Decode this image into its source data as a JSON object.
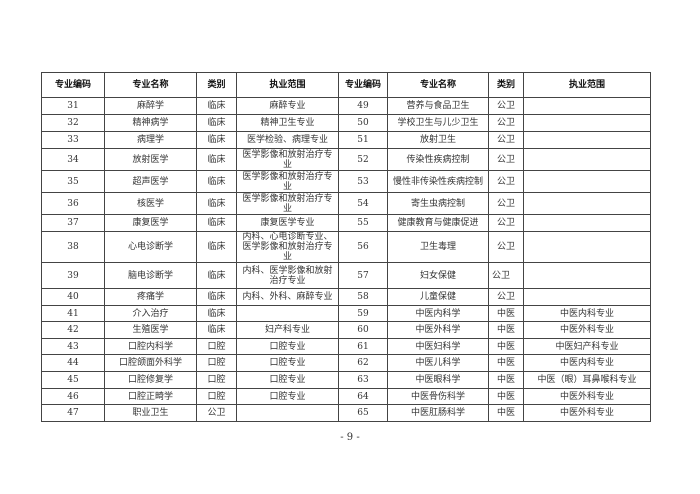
{
  "headers": [
    "专业编码",
    "专业名称",
    "类别",
    "执业范围",
    "专业编码",
    "专业名称",
    "类别",
    "执业范围"
  ],
  "rows": [
    {
      "left": [
        "31",
        "麻醉学",
        "临床",
        "麻醉专业"
      ],
      "right": [
        "49",
        "营养与食品卫生",
        "公卫",
        ""
      ]
    },
    {
      "left": [
        "32",
        "精神病学",
        "临床",
        "精神卫生专业"
      ],
      "right": [
        "50",
        "学校卫生与儿少卫生",
        "公卫",
        ""
      ]
    },
    {
      "left": [
        "33",
        "病理学",
        "临床",
        "医学检验、病理专业"
      ],
      "right": [
        "51",
        "放射卫生",
        "公卫",
        ""
      ]
    },
    {
      "left": [
        "34",
        "放射医学",
        "临床",
        "医学影像和放射治疗专业"
      ],
      "right": [
        "52",
        "传染性疾病控制",
        "公卫",
        ""
      ]
    },
    {
      "left": [
        "35",
        "超声医学",
        "临床",
        "医学影像和放射治疗专业"
      ],
      "right": [
        "53",
        "慢性非传染性疾病控制",
        "公卫",
        ""
      ]
    },
    {
      "left": [
        "36",
        "核医学",
        "临床",
        "医学影像和放射治疗专业"
      ],
      "right": [
        "54",
        "寄生虫病控制",
        "公卫",
        ""
      ]
    },
    {
      "left": [
        "37",
        "康复医学",
        "临床",
        "康复医学专业"
      ],
      "right": [
        "55",
        "健康教育与健康促进",
        "公卫",
        ""
      ]
    },
    {
      "left": [
        "38",
        "心电诊断学",
        "临床",
        "内科、心电诊断专业、医学影像和放射治疗专业"
      ],
      "right": [
        "56",
        "卫生毒理",
        "公卫",
        ""
      ]
    },
    {
      "left": [
        "39",
        "脑电诊断学",
        "临床",
        "内科、医学影像和放射治疗专业"
      ],
      "right": [
        "57",
        "妇女保健",
        "公卫",
        ""
      ]
    },
    {
      "left": [
        "40",
        "疼痛学",
        "临床",
        "内科、外科、麻醉专业"
      ],
      "right": [
        "58",
        "儿童保健",
        "公卫",
        ""
      ]
    },
    {
      "left": [
        "41",
        "介入治疗",
        "临床",
        ""
      ],
      "right": [
        "59",
        "中医内科学",
        "中医",
        "中医内科专业"
      ]
    },
    {
      "left": [
        "42",
        "生殖医学",
        "临床",
        "妇产科专业"
      ],
      "right": [
        "60",
        "中医外科学",
        "中医",
        "中医外科专业"
      ]
    },
    {
      "left": [
        "43",
        "口腔内科学",
        "口腔",
        "口腔专业"
      ],
      "right": [
        "61",
        "中医妇科学",
        "中医",
        "中医妇产科专业"
      ]
    },
    {
      "left": [
        "44",
        "口腔颌面外科学",
        "口腔",
        "口腔专业"
      ],
      "right": [
        "62",
        "中医儿科学",
        "中医",
        "中医内科专业"
      ]
    },
    {
      "left": [
        "45",
        "口腔修复学",
        "口腔",
        "口腔专业"
      ],
      "right": [
        "63",
        "中医眼科学",
        "中医",
        "中医（眼）耳鼻喉科专业"
      ]
    },
    {
      "left": [
        "46",
        "口腔正畸学",
        "口腔",
        "口腔专业"
      ],
      "right": [
        "64",
        "中医骨伤科学",
        "中医",
        "中医外科专业"
      ]
    },
    {
      "left": [
        "47",
        "职业卫生",
        "公卫",
        ""
      ],
      "right": [
        "65",
        "中医肛肠科学",
        "中医",
        "中医外科专业"
      ]
    }
  ],
  "page_number": "- 9 -"
}
